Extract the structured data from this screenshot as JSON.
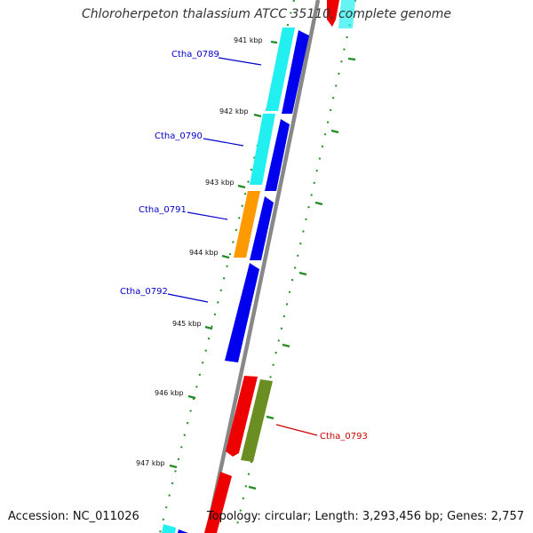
{
  "title": "Chloroherpeton thalassium ATCC 35110, complete genome",
  "footer": {
    "accession": "Accession: NC_011026",
    "summary": "Topology: circular; Length: 3,293,456 bp; Genes: 2,757"
  },
  "ticks": [
    {
      "label": "941 kbp"
    },
    {
      "label": "942 kbp"
    },
    {
      "label": "943 kbp"
    },
    {
      "label": "944 kbp"
    },
    {
      "label": "945 kbp"
    },
    {
      "label": "946 kbp"
    },
    {
      "label": "947 kbp"
    }
  ],
  "genes": [
    {
      "label": "Ctha_0789",
      "color": "#0000cc"
    },
    {
      "label": "Ctha_0790",
      "color": "#0000cc"
    },
    {
      "label": "Ctha_0791",
      "color": "#0000cc"
    },
    {
      "label": "Ctha_0792",
      "color": "#0000cc"
    },
    {
      "label": "Ctha_0793",
      "color": "#cc0000"
    }
  ],
  "colors": {
    "cyan": "#22f0f0",
    "blue": "#0000ee",
    "orange": "#ff9900",
    "red": "#ee0000",
    "olive": "#6b8e23",
    "backbone": "#888888",
    "tick_green": "#228b22"
  }
}
